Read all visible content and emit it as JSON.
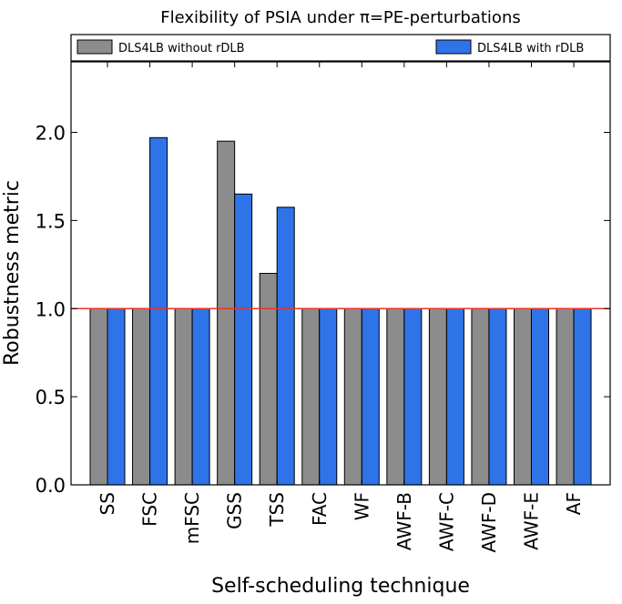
{
  "chart_data": {
    "type": "bar",
    "title": "Flexibility of PSIA under π=PE-perturbations",
    "xlabel": "Self-scheduling technique",
    "ylabel": "Robustness metric",
    "ylim": [
      0,
      2.4
    ],
    "yticks": [
      0.0,
      0.5,
      1.0,
      1.5,
      2.0
    ],
    "ytick_labels": [
      "0.0",
      "0.5",
      "1.0",
      "1.5",
      "2.0"
    ],
    "categories": [
      "SS",
      "FSC",
      "mFSC",
      "GSS",
      "TSS",
      "FAC",
      "WF",
      "AWF-B",
      "AWF-C",
      "AWF-D",
      "AWF-E",
      "AF"
    ],
    "series": [
      {
        "name": "DLS4LB without rDLB",
        "color": "#8c8c8c",
        "values": [
          1.0,
          1.0,
          1.0,
          1.95,
          1.2,
          1.0,
          1.0,
          1.0,
          1.0,
          1.0,
          1.0,
          1.0
        ]
      },
      {
        "name": "DLS4LB with rDLB",
        "color": "#2f73e8",
        "values": [
          1.0,
          1.97,
          1.0,
          1.65,
          1.575,
          1.0,
          1.0,
          1.0,
          1.0,
          1.0,
          1.0,
          1.0
        ]
      }
    ],
    "reference_line": {
      "value": 1.0,
      "color": "#e8332a"
    },
    "grid": false,
    "legend_placement": "top, above plot"
  }
}
